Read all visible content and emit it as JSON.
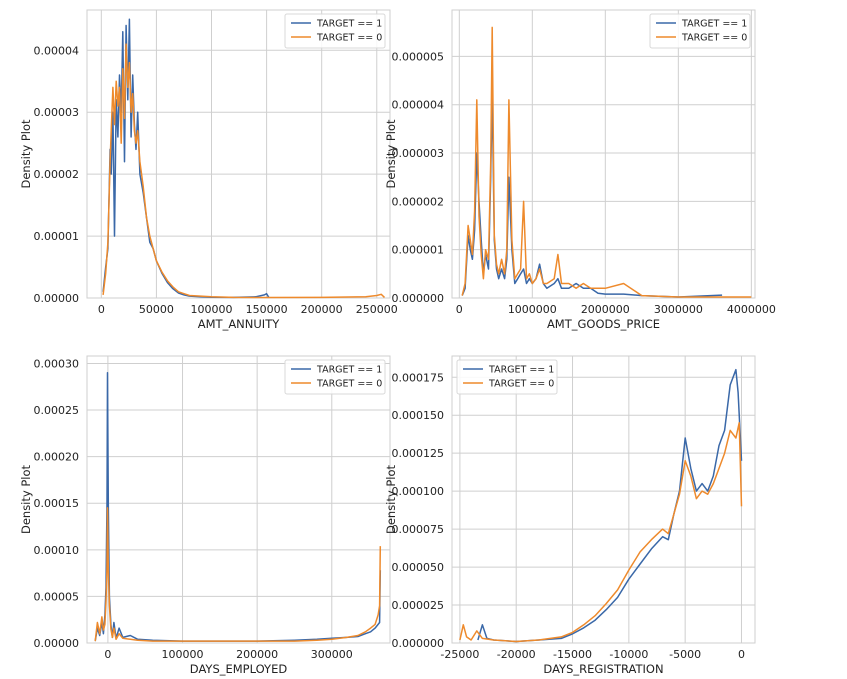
{
  "colors": {
    "target1": "#3a68a8",
    "target0": "#ee8a2c",
    "grid": "#cfcfcf"
  },
  "chart_data": [
    {
      "type": "line",
      "xlabel": "AMT_ANNUITY",
      "ylabel": "Density Plot",
      "xlim": [
        -13000,
        262000
      ],
      "ylim": [
        0,
        4.65e-05
      ],
      "xticks": [
        0,
        50000,
        100000,
        150000,
        200000,
        250000
      ],
      "xtick_labels": [
        "0",
        "50000",
        "100000",
        "150000",
        "200000",
        "250000"
      ],
      "yticks": [
        0,
        1e-05,
        2e-05,
        3e-05,
        4e-05
      ],
      "ytick_labels": [
        "0.00000",
        "0.00001",
        "0.00002",
        "0.00003",
        "0.00004"
      ],
      "legend": "top-right",
      "series": [
        {
          "name": "TARGET == 1",
          "color": "#3a68a8",
          "x": [
            1600,
            4000,
            6000,
            8000,
            9000,
            10500,
            12000,
            13500,
            15000,
            16500,
            18000,
            19500,
            21000,
            22500,
            24000,
            25500,
            27000,
            28500,
            30000,
            31500,
            33000,
            35000,
            38000,
            41000,
            44000,
            47000,
            50000,
            55000,
            60000,
            65000,
            70000,
            75000,
            80000,
            90000,
            100000,
            120000,
            140000,
            148000,
            150000,
            152000
          ],
          "y": [
            1e-06,
            5e-06,
            8e-06,
            2.4e-05,
            2e-05,
            3e-05,
            1e-05,
            3.2e-05,
            2.6e-05,
            3.6e-05,
            3e-05,
            4.3e-05,
            2.2e-05,
            4.4e-05,
            3.2e-05,
            4.5e-05,
            2.6e-05,
            3.6e-05,
            2.8e-05,
            2.4e-05,
            3e-05,
            2e-05,
            1.7e-05,
            1.3e-05,
            9e-06,
            8e-06,
            6e-06,
            4e-06,
            2.5e-06,
            1.5e-06,
            8e-07,
            5e-07,
            3e-07,
            2e-07,
            1.2e-07,
            1e-07,
            2e-07,
            5e-07,
            7e-07,
            1e-07
          ]
        },
        {
          "name": "TARGET == 0",
          "color": "#ee8a2c",
          "x": [
            1600,
            4000,
            6000,
            8000,
            9000,
            10500,
            12000,
            13500,
            15000,
            16500,
            18000,
            19500,
            21000,
            22500,
            24000,
            25500,
            27000,
            28500,
            30000,
            31500,
            33000,
            35000,
            38000,
            41000,
            44000,
            47000,
            50000,
            55000,
            60000,
            65000,
            70000,
            75000,
            80000,
            90000,
            100000,
            120000,
            150000,
            200000,
            240000,
            250000,
            254000,
            257000
          ],
          "y": [
            5e-07,
            4e-06,
            9e-06,
            2.2e-05,
            2.7e-05,
            3.4e-05,
            2.8e-05,
            3.5e-05,
            3.1e-05,
            3.4e-05,
            2.5e-05,
            3.7e-05,
            2.9e-05,
            4.1e-05,
            3.4e-05,
            3.8e-05,
            3e-05,
            3.3e-05,
            2.7e-05,
            2.5e-05,
            2.7e-05,
            2.2e-05,
            1.8e-05,
            1.3e-05,
            1e-05,
            8e-06,
            6e-06,
            4.2e-06,
            2.8e-06,
            1.8e-06,
            1e-06,
            7e-07,
            4e-07,
            3e-07,
            2e-07,
            1e-07,
            8e-08,
            1e-07,
            2e-07,
            4e-07,
            6e-07,
            1e-07
          ]
        }
      ]
    },
    {
      "type": "line",
      "xlabel": "AMT_GOODS_PRICE",
      "ylabel": "Density Plot",
      "xlim": [
        -100000,
        4050000
      ],
      "ylim": [
        0,
        5.96e-06
      ],
      "xticks": [
        0,
        1000000,
        2000000,
        3000000,
        4000000
      ],
      "xtick_labels": [
        "0",
        "1000000",
        "2000000",
        "3000000",
        "4000000"
      ],
      "yticks": [
        0,
        1e-06,
        2e-06,
        3e-06,
        4e-06,
        5e-06
      ],
      "ytick_labels": [
        "0.000000",
        "0.000001",
        "0.000002",
        "0.000003",
        "0.000004",
        "0.000005"
      ],
      "legend": "top-right",
      "series": [
        {
          "name": "TARGET == 1",
          "color": "#3a68a8",
          "x": [
            40000,
            80000,
            120000,
            150000,
            180000,
            210000,
            240000,
            270000,
            300000,
            330000,
            360000,
            400000,
            430000,
            450000,
            480000,
            510000,
            540000,
            580000,
            620000,
            650000,
            680000,
            720000,
            760000,
            800000,
            840000,
            880000,
            920000,
            960000,
            1000000,
            1050000,
            1100000,
            1150000,
            1200000,
            1300000,
            1350000,
            1400000,
            1500000,
            1600000,
            1700000,
            1800000,
            1900000,
            2000000,
            2250000,
            2500000,
            3000000,
            3600000
          ],
          "y": [
            5e-08,
            2e-07,
            1.3e-06,
            1e-06,
            8e-07,
            1.4e-06,
            3e-06,
            2e-06,
            1.2e-06,
            5e-07,
            9e-07,
            6e-07,
            2.5e-06,
            4.3e-06,
            1.2e-06,
            6e-07,
            4e-07,
            6e-07,
            4e-07,
            8e-07,
            2.5e-06,
            1e-06,
            3e-07,
            4e-07,
            5e-07,
            6e-07,
            3e-07,
            4e-07,
            3e-07,
            4e-07,
            7e-07,
            3e-07,
            2e-07,
            3e-07,
            4e-07,
            2e-07,
            2e-07,
            3e-07,
            2e-07,
            2e-07,
            1e-07,
            8e-08,
            8e-08,
            5e-08,
            2e-08,
            6e-08
          ]
        },
        {
          "name": "TARGET == 0",
          "color": "#ee8a2c",
          "x": [
            40000,
            80000,
            120000,
            150000,
            180000,
            210000,
            240000,
            270000,
            300000,
            330000,
            360000,
            400000,
            430000,
            450000,
            480000,
            510000,
            540000,
            580000,
            620000,
            650000,
            680000,
            720000,
            760000,
            800000,
            840000,
            880000,
            920000,
            960000,
            1000000,
            1050000,
            1100000,
            1150000,
            1200000,
            1300000,
            1350000,
            1400000,
            1500000,
            1600000,
            1700000,
            1800000,
            1900000,
            2000000,
            2250000,
            2500000,
            3000000,
            4000000
          ],
          "y": [
            5e-08,
            3e-07,
            1.5e-06,
            1.2e-06,
            9e-07,
            1.8e-06,
            4.1e-06,
            1.7e-06,
            9e-07,
            4e-07,
            1e-06,
            8e-07,
            2.8e-06,
            5.6e-06,
            1.3e-06,
            7e-07,
            5e-07,
            8e-07,
            5e-07,
            1e-06,
            4.1e-06,
            1.2e-06,
            4e-07,
            5e-07,
            6e-07,
            2e-06,
            4e-07,
            5e-07,
            3e-07,
            4e-07,
            6e-07,
            3e-07,
            3e-07,
            4e-07,
            9e-07,
            3e-07,
            3e-07,
            2e-07,
            3e-07,
            2e-07,
            2e-07,
            2e-07,
            3e-07,
            5e-08,
            2e-08,
            2e-08
          ]
        }
      ]
    },
    {
      "type": "line",
      "xlabel": "DAYS_EMPLOYED",
      "ylabel": "Density Plot",
      "xlim": [
        -28000,
        378000
      ],
      "ylim": [
        0,
        0.000308
      ],
      "xticks": [
        0,
        100000,
        200000,
        300000
      ],
      "xtick_labels": [
        "0",
        "100000",
        "200000",
        "300000"
      ],
      "yticks": [
        0,
        5e-05,
        0.0001,
        0.00015,
        0.0002,
        0.00025,
        0.0003
      ],
      "ytick_labels": [
        "0.00000",
        "0.00005",
        "0.00010",
        "0.00015",
        "0.00020",
        "0.00025",
        "0.00030"
      ],
      "legend": "top-right",
      "series": [
        {
          "name": "TARGET == 1",
          "color": "#3a68a8",
          "x": [
            -17000,
            -14000,
            -11000,
            -8000,
            -6000,
            -4000,
            -2500,
            -1200,
            -500,
            500,
            2000,
            4000,
            6000,
            8000,
            11000,
            15000,
            20000,
            30000,
            40000,
            60000,
            100000,
            150000,
            200000,
            250000,
            280000,
            300000,
            320000,
            335000,
            345000,
            352000,
            358000,
            362000,
            364000,
            365000
          ],
          "y": [
            2e-06,
            1.6e-05,
            8e-06,
            2.2e-05,
            1e-05,
            3e-05,
            6e-05,
            0.00015,
            0.00029,
            0.00015,
            5e-05,
            2e-05,
            6e-06,
            2.2e-05,
            5e-06,
            1.6e-05,
            6e-06,
            8e-06,
            4e-06,
            3e-06,
            2e-06,
            2e-06,
            2e-06,
            3e-06,
            4e-06,
            5e-06,
            6e-06,
            7e-06,
            1e-05,
            1.2e-05,
            1.6e-05,
            2e-05,
            2.2e-05,
            7.8e-05
          ]
        },
        {
          "name": "TARGET == 0",
          "color": "#ee8a2c",
          "x": [
            -17000,
            -14000,
            -11000,
            -8000,
            -6000,
            -4000,
            -2500,
            -1200,
            -500,
            500,
            2000,
            4000,
            6000,
            8000,
            11000,
            15000,
            20000,
            30000,
            40000,
            60000,
            100000,
            150000,
            200000,
            250000,
            280000,
            300000,
            320000,
            335000,
            345000,
            352000,
            358000,
            362000,
            364000,
            365000
          ],
          "y": [
            2e-06,
            2.2e-05,
            1e-05,
            2.8e-05,
            1.4e-05,
            2e-05,
            4.5e-05,
            8e-05,
            0.000145,
            8e-05,
            4e-05,
            1.5e-05,
            6e-06,
            1.6e-05,
            4e-06,
            1e-05,
            5e-06,
            4e-06,
            3e-06,
            2e-06,
            2e-06,
            2e-06,
            2e-06,
            2e-06,
            3e-06,
            4e-06,
            6e-06,
            8e-06,
            1.2e-05,
            1.6e-05,
            2e-05,
            3e-05,
            4e-05,
            0.000104
          ]
        }
      ]
    },
    {
      "type": "line",
      "xlabel": "DAYS_REGISTRATION",
      "ylabel": "Density Plot",
      "xlim": [
        -25700,
        1200
      ],
      "ylim": [
        0,
        0.000189
      ],
      "xticks": [
        -25000,
        -20000,
        -15000,
        -10000,
        -5000,
        0
      ],
      "xtick_labels": [
        "-25000",
        "-20000",
        "-15000",
        "-10000",
        "-5000",
        "0"
      ],
      "yticks": [
        0,
        2.5e-05,
        5e-05,
        7.5e-05,
        0.0001,
        0.000125,
        0.00015,
        0.000175
      ],
      "ytick_labels": [
        "0.000000",
        "0.000025",
        "0.000050",
        "0.000075",
        "0.000100",
        "0.000125",
        "0.000150",
        "0.000175"
      ],
      "legend": "top-left",
      "series": [
        {
          "name": "TARGET == 1",
          "color": "#3a68a8",
          "x": [
            -23400,
            -23000,
            -22600,
            -22000,
            -20000,
            -18000,
            -16000,
            -15000,
            -14000,
            -13000,
            -12000,
            -11000,
            -10000,
            -9000,
            -8000,
            -7000,
            -6500,
            -6000,
            -5500,
            -5000,
            -4500,
            -4000,
            -3500,
            -3000,
            -2500,
            -2000,
            -1500,
            -1000,
            -500,
            -300,
            0
          ],
          "y": [
            2e-06,
            1.2e-05,
            3e-06,
            2e-06,
            1e-06,
            2e-06,
            3e-06,
            6e-06,
            1e-05,
            1.5e-05,
            2.2e-05,
            3e-05,
            4.2e-05,
            5.2e-05,
            6.2e-05,
            7e-05,
            6.8e-05,
            8.5e-05,
            0.0001,
            0.000135,
            0.000115,
            0.0001,
            0.000105,
            0.0001,
            0.00011,
            0.00013,
            0.00014,
            0.00017,
            0.00018,
            0.000165,
            0.00012
          ]
        },
        {
          "name": "TARGET == 0",
          "color": "#ee8a2c",
          "x": [
            -25000,
            -24700,
            -24400,
            -24000,
            -23500,
            -23000,
            -22000,
            -20000,
            -18000,
            -16000,
            -15000,
            -14000,
            -13000,
            -12000,
            -11000,
            -10000,
            -9000,
            -8000,
            -7000,
            -6500,
            -6000,
            -5500,
            -5000,
            -4500,
            -4000,
            -3500,
            -3000,
            -2500,
            -2000,
            -1500,
            -1000,
            -500,
            -200,
            0
          ],
          "y": [
            2e-06,
            1.2e-05,
            4e-06,
            2e-06,
            8e-06,
            3e-06,
            2e-06,
            1e-06,
            2e-06,
            4e-06,
            7e-06,
            1.2e-05,
            1.8e-05,
            2.6e-05,
            3.5e-05,
            4.8e-05,
            6e-05,
            6.8e-05,
            7.5e-05,
            7.2e-05,
            8.5e-05,
            9.8e-05,
            0.00012,
            0.00011,
            9.5e-05,
            0.0001,
            9.8e-05,
            0.000105,
            0.000115,
            0.000125,
            0.00014,
            0.000135,
            0.000145,
            9e-05
          ]
        }
      ]
    }
  ]
}
